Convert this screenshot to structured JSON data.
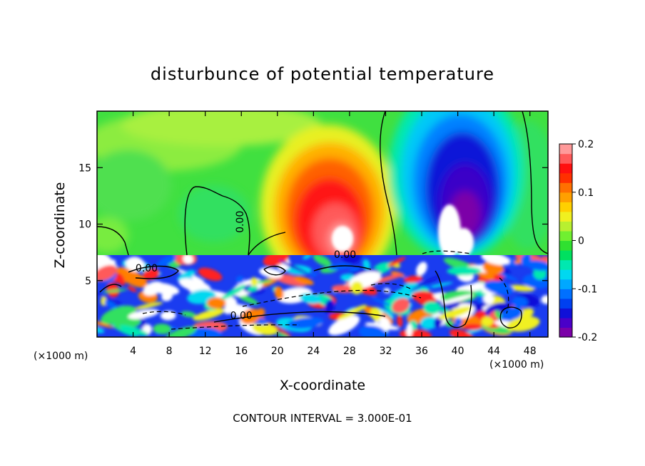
{
  "chart_data": {
    "type": "heatmap",
    "title": "disturbunce of potential temperature",
    "xlabel": "X-coordinate",
    "ylabel": "Z-coordinate",
    "x_unit_label": "(×1000 m)",
    "y_unit_label": "(×1000 m)",
    "footer": "CONTOUR INTERVAL = 3.000E-01",
    "xlim": [
      0,
      50
    ],
    "ylim": [
      0,
      20
    ],
    "xticks": [
      4,
      8,
      12,
      16,
      20,
      24,
      28,
      32,
      36,
      40,
      44,
      48
    ],
    "yticks": [
      5,
      10,
      15
    ],
    "contour_labels": [
      {
        "text": "0.00",
        "x": 16.2,
        "y": 10.2,
        "rotation": -90
      },
      {
        "text": "0.00",
        "x": 5.5,
        "y": 5.8,
        "rotation": 0
      },
      {
        "text": "0.00",
        "x": 27.5,
        "y": 7.0,
        "rotation": 0
      },
      {
        "text": "0.00",
        "x": 16.0,
        "y": 1.6,
        "rotation": 0
      }
    ],
    "colorbar": {
      "min": -0.2,
      "max": 0.2,
      "ticks": [
        "0.2",
        "0.1",
        "0",
        "-0.1",
        "-0.2"
      ],
      "colors": [
        "#7b00a8",
        "#4a00c8",
        "#1010d8",
        "#0040f0",
        "#0070ff",
        "#00a8ff",
        "#00d8f0",
        "#00e8b0",
        "#00e060",
        "#30e030",
        "#70f030",
        "#b8f030",
        "#f0f020",
        "#ffd000",
        "#ffa000",
        "#ff7000",
        "#ff3000",
        "#ff1010",
        "#ff5a5a",
        "#ff9a9a"
      ]
    },
    "features": [
      {
        "name": "warm anomaly",
        "x_center": 27,
        "z_center": 11,
        "value": 0.2
      },
      {
        "name": "cold anomaly",
        "x_center": 40,
        "z_center": 13,
        "value": -0.2
      },
      {
        "name": "boundary layer noise",
        "z_top": 7.2
      }
    ]
  }
}
